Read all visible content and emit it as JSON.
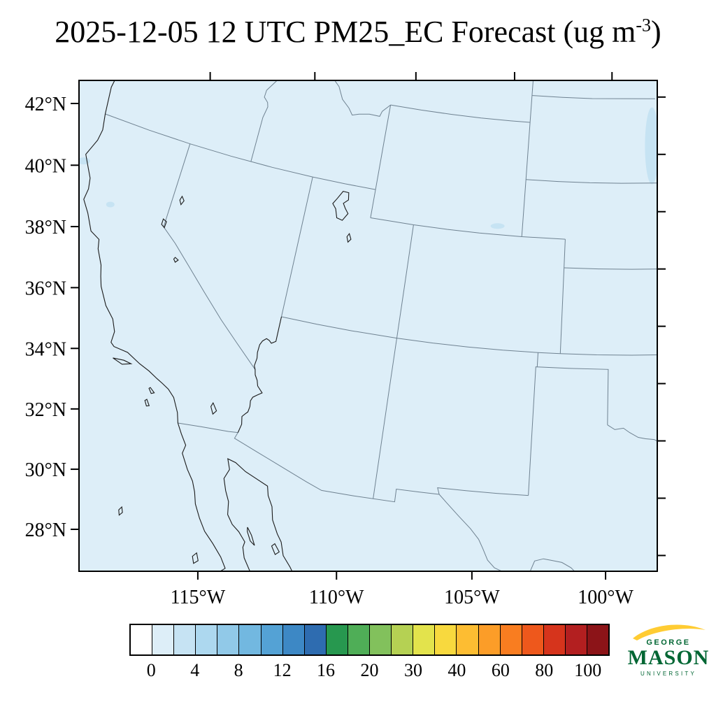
{
  "title": {
    "text": "2025-12-05 12 UTC PM25_EC Forecast (ug m",
    "exponent": "-3",
    "suffix": ")"
  },
  "map": {
    "background": "#ddeef8",
    "frame_color": "#000000",
    "state_border_color": "#6f8291",
    "coast_color": "#1a1a1a",
    "patch_color": "#c6e3f3"
  },
  "axes": {
    "lat_labels": [
      {
        "value": 42,
        "text": "42°N"
      },
      {
        "value": 40,
        "text": "40°N"
      },
      {
        "value": 38,
        "text": "38°N"
      },
      {
        "value": 36,
        "text": "36°N"
      },
      {
        "value": 34,
        "text": "34°N"
      },
      {
        "value": 32,
        "text": "32°N"
      },
      {
        "value": 30,
        "text": "30°N"
      },
      {
        "value": 28,
        "text": "28°N"
      }
    ],
    "lon_labels": [
      {
        "value": -115,
        "text": "115°W"
      },
      {
        "value": -110,
        "text": "110°W"
      },
      {
        "value": -105,
        "text": "105°W"
      },
      {
        "value": -100,
        "text": "100°W"
      }
    ]
  },
  "colorbar": {
    "tick_labels": [
      "0",
      "4",
      "8",
      "12",
      "16",
      "20",
      "30",
      "40",
      "60",
      "80",
      "100"
    ],
    "colors": [
      "#ffffff",
      "#ddeef8",
      "#c6e3f3",
      "#add8ef",
      "#91c9e8",
      "#72b8e0",
      "#54a2d5",
      "#3d88c5",
      "#2e6cb0",
      "#27984f",
      "#4fae57",
      "#82c15c",
      "#b5d153",
      "#e3e34c",
      "#f8d93e",
      "#fdbd32",
      "#fc9d28",
      "#f97d20",
      "#ee581c",
      "#d6341c",
      "#b31f20",
      "#8c1418"
    ]
  },
  "logo": {
    "top": "GEORGE",
    "middle": "MASON",
    "bottom": "UNIVERSITY",
    "green": "#006633",
    "gold": "#FFCC33"
  }
}
